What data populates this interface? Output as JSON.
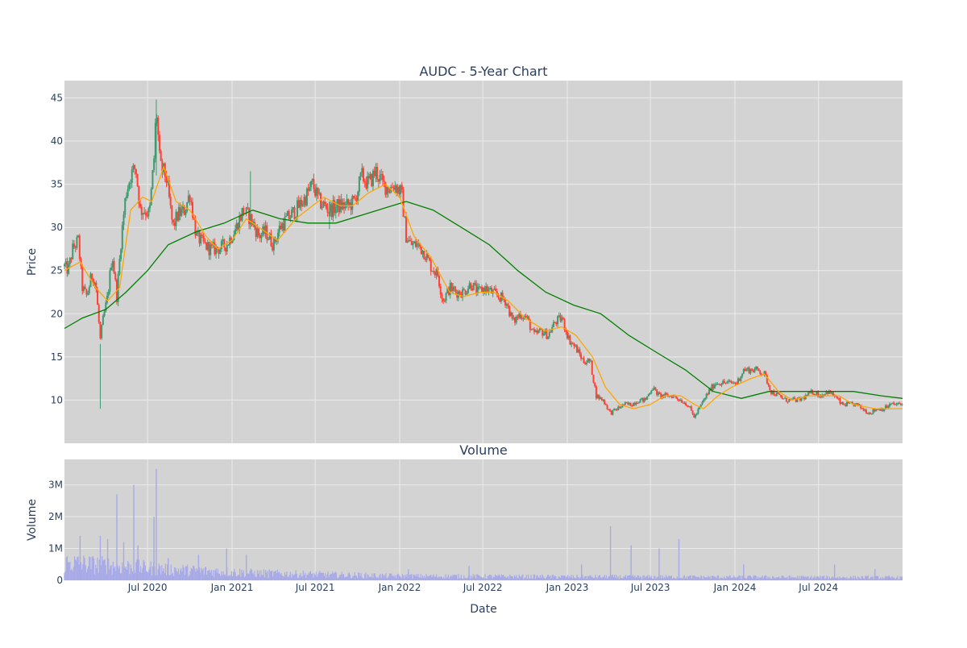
{
  "chart_data": [
    {
      "type": "candlestick",
      "title": "AUDC - 5-Year Chart",
      "ylabel": "Price",
      "xlabel": "",
      "xlim": [
        "2020-01-02",
        "2024-12-31"
      ],
      "ylim": [
        5,
        47
      ],
      "yticks": [
        10,
        15,
        20,
        25,
        30,
        35,
        40,
        45
      ],
      "grid": true,
      "legend": "none",
      "colors": {
        "increasing": "#3d9970",
        "decreasing": "#ff4136",
        "ma_short": "#ffa500",
        "ma_long": "#008000",
        "plot_bg": "#d3d3d3",
        "grid": "#ebebeb"
      },
      "price_path": [
        [
          "2020-01-02",
          25.5
        ],
        [
          "2020-01-10",
          25.0
        ],
        [
          "2020-01-20",
          27.5
        ],
        [
          "2020-02-01",
          28.5
        ],
        [
          "2020-02-10",
          23.0
        ],
        [
          "2020-02-20",
          22.0
        ],
        [
          "2020-03-01",
          24.5
        ],
        [
          "2020-03-10",
          23.5
        ],
        [
          "2020-03-20",
          17.0
        ],
        [
          "2020-03-25",
          19.0
        ],
        [
          "2020-04-05",
          22.0
        ],
        [
          "2020-04-15",
          27.0
        ],
        [
          "2020-04-25",
          22.0
        ],
        [
          "2020-05-05",
          29.0
        ],
        [
          "2020-05-15",
          34.0
        ],
        [
          "2020-05-25",
          36.0
        ],
        [
          "2020-06-05",
          37.0
        ],
        [
          "2020-06-15",
          32.0
        ],
        [
          "2020-06-25",
          32.0
        ],
        [
          "2020-07-05",
          31.5
        ],
        [
          "2020-07-15",
          38.0
        ],
        [
          "2020-07-20",
          44.0
        ],
        [
          "2020-07-28",
          37.0
        ],
        [
          "2020-08-10",
          36.0
        ],
        [
          "2020-08-25",
          30.0
        ],
        [
          "2020-09-05",
          31.5
        ],
        [
          "2020-09-20",
          32.0
        ],
        [
          "2020-10-01",
          34.0
        ],
        [
          "2020-10-15",
          29.0
        ],
        [
          "2020-11-01",
          28.0
        ],
        [
          "2020-11-15",
          27.5
        ],
        [
          "2020-12-01",
          27.5
        ],
        [
          "2020-12-20",
          28.0
        ],
        [
          "2021-01-10",
          30.0
        ],
        [
          "2021-01-25",
          32.0
        ],
        [
          "2021-02-10",
          31.0
        ],
        [
          "2021-03-01",
          29.0
        ],
        [
          "2021-03-15",
          29.5
        ],
        [
          "2021-04-01",
          28.0
        ],
        [
          "2021-04-15",
          30.0
        ],
        [
          "2021-05-01",
          31.0
        ],
        [
          "2021-05-20",
          32.0
        ],
        [
          "2021-06-10",
          33.5
        ],
        [
          "2021-06-25",
          35.0
        ],
        [
          "2021-07-10",
          33.0
        ],
        [
          "2021-08-01",
          32.0
        ],
        [
          "2021-08-20",
          32.5
        ],
        [
          "2021-09-10",
          32.5
        ],
        [
          "2021-09-25",
          33.0
        ],
        [
          "2021-10-10",
          36.0
        ],
        [
          "2021-10-25",
          35.0
        ],
        [
          "2021-11-10",
          36.5
        ],
        [
          "2021-11-25",
          35.0
        ],
        [
          "2021-12-10",
          34.5
        ],
        [
          "2021-12-20",
          35.0
        ],
        [
          "2022-01-05",
          34.0
        ],
        [
          "2022-01-15",
          29.0
        ],
        [
          "2022-01-25",
          28.0
        ],
        [
          "2022-02-10",
          28.0
        ],
        [
          "2022-02-25",
          27.0
        ],
        [
          "2022-03-10",
          25.5
        ],
        [
          "2022-03-25",
          24.5
        ],
        [
          "2022-04-05",
          21.5
        ],
        [
          "2022-04-20",
          23.0
        ],
        [
          "2022-05-05",
          22.5
        ],
        [
          "2022-05-20",
          22.5
        ],
        [
          "2022-06-05",
          23.5
        ],
        [
          "2022-06-20",
          22.5
        ],
        [
          "2022-07-05",
          23.0
        ],
        [
          "2022-07-20",
          22.5
        ],
        [
          "2022-08-05",
          22.0
        ],
        [
          "2022-08-20",
          21.5
        ],
        [
          "2022-09-05",
          19.0
        ],
        [
          "2022-09-20",
          20.0
        ],
        [
          "2022-10-05",
          19.5
        ],
        [
          "2022-10-20",
          17.5
        ],
        [
          "2022-11-05",
          18.0
        ],
        [
          "2022-11-20",
          17.5
        ],
        [
          "2022-12-05",
          19.0
        ],
        [
          "2022-12-20",
          19.5
        ],
        [
          "2023-01-05",
          17.0
        ],
        [
          "2023-01-20",
          16.0
        ],
        [
          "2023-02-05",
          14.5
        ],
        [
          "2023-02-20",
          14.5
        ],
        [
          "2023-03-05",
          10.5
        ],
        [
          "2023-03-20",
          10.0
        ],
        [
          "2023-04-05",
          8.5
        ],
        [
          "2023-04-20",
          9.0
        ],
        [
          "2023-05-05",
          9.5
        ],
        [
          "2023-05-20",
          9.5
        ],
        [
          "2023-06-05",
          10.0
        ],
        [
          "2023-06-20",
          10.0
        ],
        [
          "2023-07-05",
          11.5
        ],
        [
          "2023-07-20",
          10.5
        ],
        [
          "2023-08-05",
          10.5
        ],
        [
          "2023-08-20",
          10.5
        ],
        [
          "2023-09-05",
          10.0
        ],
        [
          "2023-09-20",
          9.5
        ],
        [
          "2023-10-05",
          8.0
        ],
        [
          "2023-10-20",
          9.5
        ],
        [
          "2023-11-05",
          11.0
        ],
        [
          "2023-11-20",
          12.0
        ],
        [
          "2023-12-05",
          12.0
        ],
        [
          "2023-12-20",
          12.0
        ],
        [
          "2024-01-05",
          12.0
        ],
        [
          "2024-01-20",
          13.5
        ],
        [
          "2024-02-05",
          13.5
        ],
        [
          "2024-02-20",
          13.5
        ],
        [
          "2024-03-05",
          13.0
        ],
        [
          "2024-03-20",
          11.0
        ],
        [
          "2024-04-05",
          10.5
        ],
        [
          "2024-04-20",
          10.0
        ],
        [
          "2024-05-05",
          10.0
        ],
        [
          "2024-05-20",
          10.0
        ],
        [
          "2024-06-05",
          10.5
        ],
        [
          "2024-06-20",
          11.0
        ],
        [
          "2024-07-05",
          10.5
        ],
        [
          "2024-07-20",
          11.0
        ],
        [
          "2024-08-05",
          10.5
        ],
        [
          "2024-08-20",
          9.5
        ],
        [
          "2024-09-05",
          9.5
        ],
        [
          "2024-09-20",
          9.5
        ],
        [
          "2024-10-05",
          9.0
        ],
        [
          "2024-10-20",
          8.5
        ],
        [
          "2024-11-05",
          9.0
        ],
        [
          "2024-11-20",
          9.0
        ],
        [
          "2024-12-05",
          9.5
        ],
        [
          "2024-12-31",
          9.5
        ]
      ],
      "ma_short": [
        [
          "2020-01-02",
          25.0
        ],
        [
          "2020-02-05",
          26.0
        ],
        [
          "2020-03-10",
          23.0
        ],
        [
          "2020-04-05",
          21.5
        ],
        [
          "2020-05-01",
          23.0
        ],
        [
          "2020-05-25",
          32.0
        ],
        [
          "2020-06-20",
          33.5
        ],
        [
          "2020-07-10",
          33.0
        ],
        [
          "2020-08-05",
          37.0
        ],
        [
          "2020-09-01",
          33.0
        ],
        [
          "2020-10-01",
          32.0
        ],
        [
          "2020-11-05",
          29.0
        ],
        [
          "2020-12-01",
          27.5
        ],
        [
          "2021-01-01",
          28.5
        ],
        [
          "2021-02-01",
          31.0
        ],
        [
          "2021-03-01",
          30.0
        ],
        [
          "2021-04-10",
          28.5
        ],
        [
          "2021-05-20",
          31.0
        ],
        [
          "2021-06-25",
          32.5
        ],
        [
          "2021-07-20",
          33.5
        ],
        [
          "2021-08-25",
          32.5
        ],
        [
          "2021-09-20",
          32.5
        ],
        [
          "2021-10-25",
          34.0
        ],
        [
          "2021-12-01",
          35.0
        ],
        [
          "2022-01-01",
          33.5
        ],
        [
          "2022-02-01",
          29.0
        ],
        [
          "2022-03-10",
          26.5
        ],
        [
          "2022-04-20",
          22.5
        ],
        [
          "2022-05-20",
          22.0
        ],
        [
          "2022-06-25",
          22.5
        ],
        [
          "2022-07-25",
          22.5
        ],
        [
          "2022-08-25",
          21.5
        ],
        [
          "2022-10-01",
          19.5
        ],
        [
          "2022-11-15",
          18.0
        ],
        [
          "2022-12-20",
          18.5
        ],
        [
          "2023-01-20",
          17.5
        ],
        [
          "2023-02-25",
          15.0
        ],
        [
          "2023-03-25",
          11.5
        ],
        [
          "2023-04-25",
          9.5
        ],
        [
          "2023-05-25",
          9.0
        ],
        [
          "2023-07-01",
          9.5
        ],
        [
          "2023-08-01",
          10.5
        ],
        [
          "2023-09-05",
          10.5
        ],
        [
          "2023-10-05",
          9.5
        ],
        [
          "2023-10-25",
          9.0
        ],
        [
          "2023-11-25",
          10.5
        ],
        [
          "2023-12-25",
          11.5
        ],
        [
          "2024-02-05",
          12.5
        ],
        [
          "2024-03-05",
          13.0
        ],
        [
          "2024-04-05",
          11.0
        ],
        [
          "2024-05-05",
          10.0
        ],
        [
          "2024-06-10",
          10.5
        ],
        [
          "2024-07-10",
          10.5
        ],
        [
          "2024-08-15",
          10.5
        ],
        [
          "2024-09-15",
          9.5
        ],
        [
          "2024-11-01",
          9.0
        ],
        [
          "2024-12-31",
          9.0
        ]
      ],
      "ma_long": [
        [
          "2020-01-02",
          18.3
        ],
        [
          "2020-02-10",
          19.5
        ],
        [
          "2020-04-01",
          20.5
        ],
        [
          "2020-05-15",
          22.5
        ],
        [
          "2020-07-01",
          25.0
        ],
        [
          "2020-08-15",
          28.0
        ],
        [
          "2020-10-15",
          29.5
        ],
        [
          "2020-12-15",
          30.5
        ],
        [
          "2021-02-15",
          32.0
        ],
        [
          "2021-04-15",
          31.0
        ],
        [
          "2021-06-15",
          30.5
        ],
        [
          "2021-08-15",
          30.5
        ],
        [
          "2021-10-15",
          31.5
        ],
        [
          "2021-12-15",
          32.5
        ],
        [
          "2022-01-15",
          33.0
        ],
        [
          "2022-03-15",
          32.0
        ],
        [
          "2022-05-15",
          30.0
        ],
        [
          "2022-07-15",
          28.0
        ],
        [
          "2022-09-15",
          25.0
        ],
        [
          "2022-11-15",
          22.5
        ],
        [
          "2023-01-15",
          21.0
        ],
        [
          "2023-03-15",
          20.0
        ],
        [
          "2023-05-15",
          17.5
        ],
        [
          "2023-07-15",
          15.5
        ],
        [
          "2023-09-15",
          13.5
        ],
        [
          "2023-11-15",
          11.0
        ],
        [
          "2024-01-15",
          10.2
        ],
        [
          "2024-03-15",
          11.0
        ],
        [
          "2024-05-15",
          11.0
        ],
        [
          "2024-07-15",
          11.0
        ],
        [
          "2024-09-15",
          11.0
        ],
        [
          "2024-11-15",
          10.5
        ],
        [
          "2024-12-31",
          10.2
        ]
      ]
    },
    {
      "type": "bar",
      "title": "Volume",
      "ylabel": "Volume",
      "xlabel": "Date",
      "xlim": [
        "2020-01-02",
        "2024-12-31"
      ],
      "ylim": [
        0,
        3800000
      ],
      "yticks": [
        0,
        1000000,
        2000000,
        3000000
      ],
      "ytick_labels": [
        "0",
        "1M",
        "2M",
        "3M"
      ],
      "xticks": [
        "2020-07-01",
        "2021-01-01",
        "2021-07-01",
        "2022-01-01",
        "2022-07-01",
        "2023-01-01",
        "2023-07-01",
        "2024-01-01",
        "2024-07-01"
      ],
      "xtick_labels": [
        "Jul 2020",
        "Jan 2021",
        "Jul 2021",
        "Jan 2022",
        "Jul 2022",
        "Jan 2023",
        "Jul 2023",
        "Jan 2024",
        "Jul 2024"
      ],
      "bar_color": "#a7a9e8",
      "spikes": [
        [
          "2020-02-05",
          1400000
        ],
        [
          "2020-03-20",
          1400000
        ],
        [
          "2020-04-05",
          1300000
        ],
        [
          "2020-04-25",
          2700000
        ],
        [
          "2020-05-10",
          1200000
        ],
        [
          "2020-06-01",
          3000000
        ],
        [
          "2020-06-10",
          1100000
        ],
        [
          "2020-07-15",
          2000000
        ],
        [
          "2020-07-20",
          3500000
        ],
        [
          "2020-08-15",
          700000
        ],
        [
          "2020-10-20",
          800000
        ],
        [
          "2020-12-20",
          1000000
        ],
        [
          "2021-02-01",
          800000
        ],
        [
          "2022-01-20",
          350000
        ],
        [
          "2022-06-01",
          450000
        ],
        [
          "2023-02-01",
          500000
        ],
        [
          "2023-04-05",
          1700000
        ],
        [
          "2023-05-20",
          1100000
        ],
        [
          "2023-07-20",
          1000000
        ],
        [
          "2023-09-01",
          1300000
        ],
        [
          "2024-01-20",
          500000
        ],
        [
          "2024-08-05",
          500000
        ],
        [
          "2024-11-01",
          350000
        ]
      ],
      "base_levels": [
        [
          "2020-01-02",
          500000
        ],
        [
          "2020-09-01",
          300000
        ],
        [
          "2021-03-01",
          200000
        ],
        [
          "2022-01-01",
          120000
        ],
        [
          "2023-01-01",
          100000
        ],
        [
          "2024-01-01",
          90000
        ],
        [
          "2024-12-31",
          80000
        ]
      ]
    }
  ]
}
